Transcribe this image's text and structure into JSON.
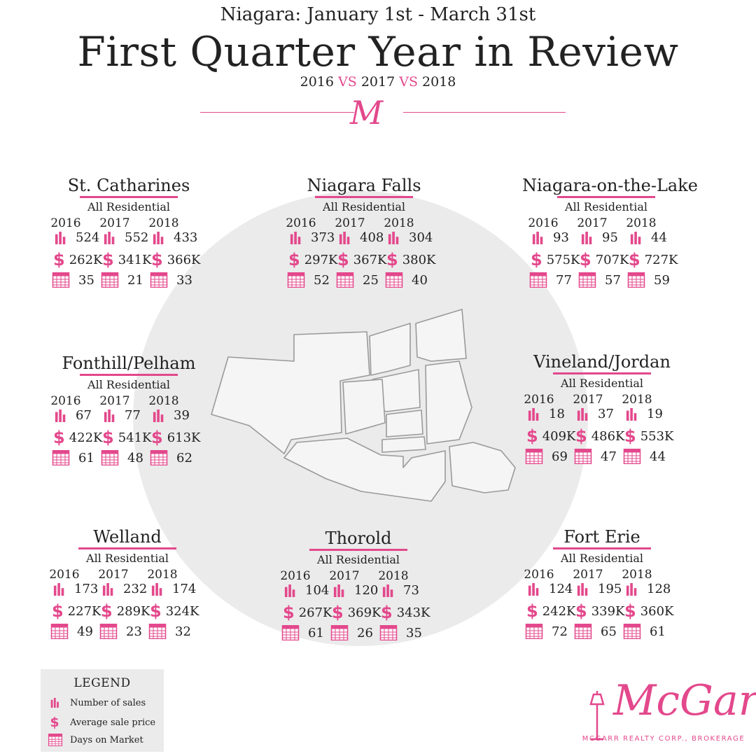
{
  "header": {
    "subtitle": "Niagara:  January 1st - March 31st",
    "title": "First Quarter Year in Review",
    "years": {
      "y1": "2016",
      "vs1": "VS",
      "y2": "2017",
      "vs2": "VS",
      "y3": "2018"
    },
    "monogram": "M"
  },
  "years": [
    "2016",
    "2017",
    "2018"
  ],
  "cities": [
    {
      "name": "St. Catharines",
      "sub": "All Residential",
      "sales": [
        "524",
        "552",
        "433"
      ],
      "price": [
        "262K",
        "341K",
        "366K"
      ],
      "days": [
        "35",
        "21",
        "33"
      ]
    },
    {
      "name": "Niagara Falls",
      "sub": "All Residential",
      "sales": [
        "373",
        "408",
        "304"
      ],
      "price": [
        "297K",
        "367K",
        "380K"
      ],
      "days": [
        "52",
        "25",
        "40"
      ]
    },
    {
      "name": "Niagara-on-the-Lake",
      "sub": "All Residential",
      "sales": [
        "93",
        "95",
        "44"
      ],
      "price": [
        "575K",
        "707K",
        "727K"
      ],
      "days": [
        "77",
        "57",
        "59"
      ]
    },
    {
      "name": "Fonthill/Pelham",
      "sub": "All Residential",
      "sales": [
        "67",
        "77",
        "39"
      ],
      "price": [
        "422K",
        "541K",
        "613K"
      ],
      "days": [
        "61",
        "48",
        "62"
      ]
    },
    {
      "name": "Vineland/Jordan",
      "sub": "All Residential",
      "sales": [
        "18",
        "37",
        "19"
      ],
      "price": [
        "409K",
        "486K",
        "553K"
      ],
      "days": [
        "69",
        "47",
        "44"
      ]
    },
    {
      "name": "Welland",
      "sub": "All Residential",
      "sales": [
        "173",
        "232",
        "174"
      ],
      "price": [
        "227K",
        "289K",
        "324K"
      ],
      "days": [
        "49",
        "23",
        "32"
      ]
    },
    {
      "name": "Thorold",
      "sub": "All Residential",
      "sales": [
        "104",
        "120",
        "73"
      ],
      "price": [
        "267K",
        "369K",
        "343K"
      ],
      "days": [
        "61",
        "26",
        "35"
      ]
    },
    {
      "name": "Fort Erie",
      "sub": "All Residential",
      "sales": [
        "124",
        "195",
        "128"
      ],
      "price": [
        "242K",
        "339K",
        "360K"
      ],
      "days": [
        "72",
        "65",
        "61"
      ]
    }
  ],
  "legend": {
    "title": "LEGEND",
    "items": [
      {
        "icon": "bar-chart-icon",
        "label": "Number of sales"
      },
      {
        "icon": "dollar-icon",
        "label": "Average sale price"
      },
      {
        "icon": "calendar-icon",
        "label": "Days on Market"
      }
    ]
  },
  "logo": {
    "word": "McGarr",
    "tagline": "MCGARR REALTY CORP., BROKERAGE"
  },
  "colors": {
    "accent": "#e3488c",
    "circle": "#ebebeb",
    "text": "#222222"
  }
}
